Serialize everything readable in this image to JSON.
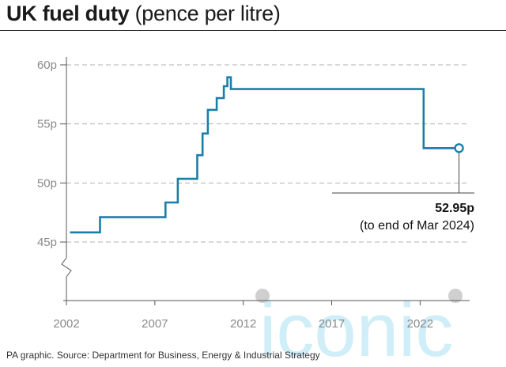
{
  "header": {
    "title": "UK fuel duty",
    "subtitle": "(pence per litre)"
  },
  "source": "PA graphic. Source: Department for Business, Energy & Industrial Strategy",
  "watermark": "iconic",
  "annotation": {
    "value": "52.95p",
    "note": "(to end of Mar 2024)"
  },
  "colors": {
    "line": "#1a7fa8",
    "grid": "#b0b0b0",
    "axis": "#555555",
    "tick": "#8a8a8a",
    "watermark": "#bfe9f6"
  },
  "chart_data": {
    "type": "line",
    "title": "UK fuel duty",
    "subtitle": "(pence per litre)",
    "xlabel": "",
    "ylabel": "",
    "xlim": [
      2002,
      2024.8
    ],
    "ylim": [
      40,
      61
    ],
    "y_axis_break": true,
    "grid": true,
    "x_ticks": [
      {
        "value": 2002,
        "label": "2002"
      },
      {
        "value": 2007,
        "label": "2007"
      },
      {
        "value": 2012,
        "label": "2012"
      },
      {
        "value": 2017,
        "label": "2017"
      },
      {
        "value": 2022,
        "label": "2022"
      }
    ],
    "y_ticks": [
      {
        "value": 45,
        "label": "45p"
      },
      {
        "value": 50,
        "label": "50p"
      },
      {
        "value": 55,
        "label": "55p"
      },
      {
        "value": 60,
        "label": "60p"
      }
    ],
    "series": [
      {
        "step": true,
        "points": [
          {
            "x": 2002.2,
            "y": 45.82
          },
          {
            "x": 2003.9,
            "y": 47.1
          },
          {
            "x": 2007.6,
            "y": 48.35
          },
          {
            "x": 2008.3,
            "y": 50.35
          },
          {
            "x": 2009.4,
            "y": 52.35
          },
          {
            "x": 2009.7,
            "y": 54.19
          },
          {
            "x": 2010.0,
            "y": 56.19
          },
          {
            "x": 2010.5,
            "y": 57.19
          },
          {
            "x": 2010.9,
            "y": 58.19
          },
          {
            "x": 2011.1,
            "y": 58.95
          },
          {
            "x": 2011.3,
            "y": 57.95
          },
          {
            "x": 2022.2,
            "y": 52.95
          },
          {
            "x": 2024.2,
            "y": 52.95
          }
        ]
      }
    ],
    "end_marker": {
      "x": 2024.2,
      "y": 52.95,
      "label": "52.95p",
      "note": "(to end of Mar 2024)"
    }
  }
}
